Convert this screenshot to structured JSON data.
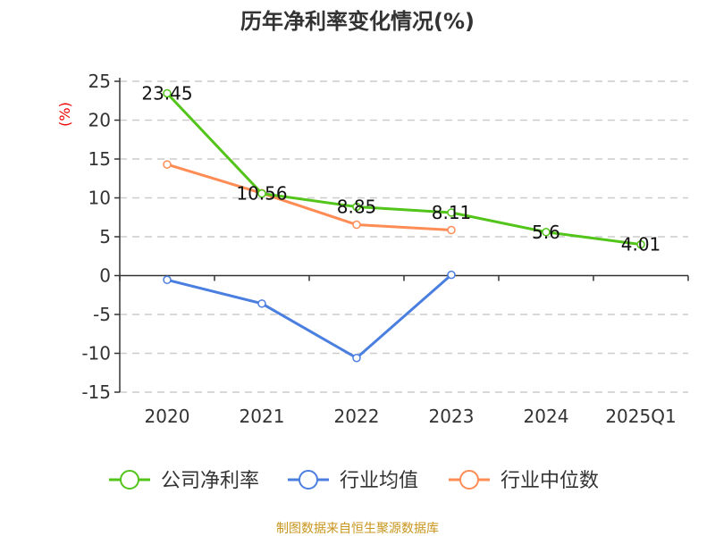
{
  "chart_data": {
    "type": "line",
    "title": "历年净利率变化情况(%)",
    "ylabel": "(%)",
    "xlabel": "",
    "categories": [
      "2020",
      "2021",
      "2022",
      "2023",
      "2024",
      "2025Q1"
    ],
    "ylim": [
      -15,
      25
    ],
    "yticks": [
      25,
      20,
      15,
      10,
      5,
      0,
      -5,
      -10,
      -15
    ],
    "grid": true,
    "legend_position": "bottom",
    "series": [
      {
        "name": "公司净利率",
        "color": "#52c41a",
        "values": [
          23.45,
          10.56,
          8.85,
          8.11,
          5.6,
          4.01
        ],
        "labels": [
          "23.45",
          "10.56",
          "8.85",
          "8.11",
          "5.6",
          "4.01"
        ]
      },
      {
        "name": "行业均值",
        "color": "#4a7fe0",
        "values": [
          -0.55,
          -3.6,
          -10.6,
          0.1,
          null,
          null
        ]
      },
      {
        "name": "行业中位数",
        "color": "#ff8c55",
        "values": [
          14.3,
          10.6,
          6.55,
          5.86,
          null,
          null
        ]
      }
    ]
  },
  "footer": {
    "source": "制图数据来自恒生聚源数据库"
  }
}
